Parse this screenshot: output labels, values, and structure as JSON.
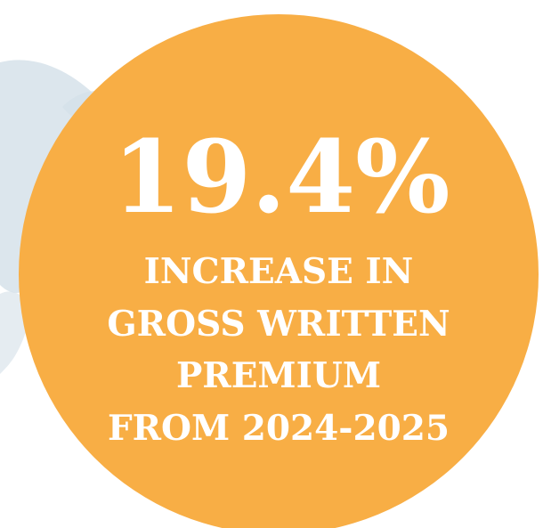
{
  "stat": {
    "value": "19.4%",
    "lines": [
      "INCREASE IN",
      "GROSS WRITTEN",
      "PREMIUM",
      "FROM 2024-2025"
    ]
  }
}
